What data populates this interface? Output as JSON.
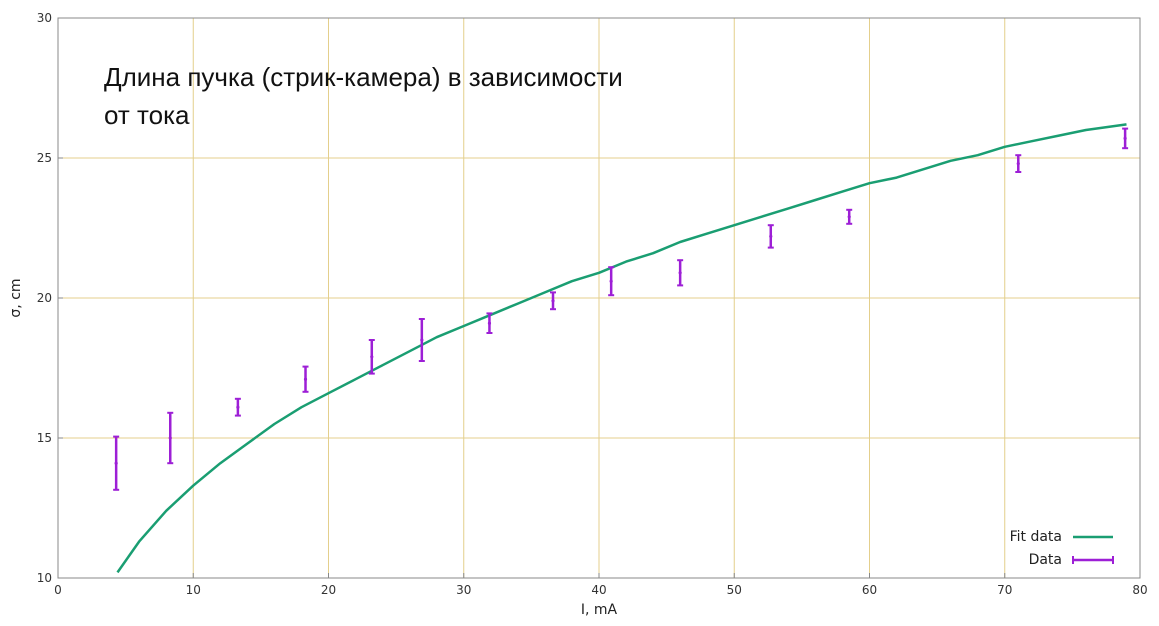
{
  "chart_data": {
    "type": "scatter",
    "title_lines": [
      "Длина пучка (стрик-камера) в зависимости",
      "от тока"
    ],
    "xlabel": "I, mA",
    "ylabel": "σ, cm",
    "xlim": [
      0,
      80
    ],
    "ylim": [
      10,
      30
    ],
    "x_ticks": [
      0,
      10,
      20,
      30,
      40,
      50,
      60,
      70,
      80
    ],
    "y_ticks": [
      10,
      15,
      20,
      25,
      30
    ],
    "grid": true,
    "legend_position": "bottom-right",
    "colors": {
      "fit": "#1a9e72",
      "data": "#9d1fd6",
      "grid": "#e4cf8c",
      "axis": "#888888"
    },
    "series": [
      {
        "name": "Fit data",
        "kind": "line",
        "x": [
          4.4,
          6,
          8,
          10,
          12,
          14,
          16,
          18,
          20,
          22,
          24,
          26,
          28,
          30,
          32,
          34,
          36,
          38,
          40,
          42,
          44,
          46,
          48,
          50,
          52,
          54,
          56,
          58,
          60,
          62,
          64,
          66,
          68,
          70,
          72,
          74,
          76,
          79
        ],
        "y": [
          10.2,
          11.3,
          12.4,
          13.3,
          14.1,
          14.8,
          15.5,
          16.1,
          16.6,
          17.1,
          17.6,
          18.1,
          18.6,
          19.0,
          19.4,
          19.8,
          20.2,
          20.6,
          20.9,
          21.3,
          21.6,
          22.0,
          22.3,
          22.6,
          22.9,
          23.2,
          23.5,
          23.8,
          24.1,
          24.3,
          24.6,
          24.9,
          25.1,
          25.4,
          25.6,
          25.8,
          26.0,
          26.2
        ]
      },
      {
        "name": "Data",
        "kind": "errorbar",
        "points": [
          {
            "x": 4.3,
            "y": 14.1,
            "err": 0.95
          },
          {
            "x": 8.3,
            "y": 15.0,
            "err": 0.9
          },
          {
            "x": 13.3,
            "y": 16.1,
            "err": 0.3
          },
          {
            "x": 18.3,
            "y": 17.1,
            "err": 0.45
          },
          {
            "x": 23.2,
            "y": 17.9,
            "err": 0.6
          },
          {
            "x": 26.9,
            "y": 18.5,
            "err": 0.75
          },
          {
            "x": 31.9,
            "y": 19.1,
            "err": 0.35
          },
          {
            "x": 36.6,
            "y": 19.9,
            "err": 0.3
          },
          {
            "x": 40.9,
            "y": 20.6,
            "err": 0.5
          },
          {
            "x": 46.0,
            "y": 20.9,
            "err": 0.45
          },
          {
            "x": 52.7,
            "y": 22.2,
            "err": 0.4
          },
          {
            "x": 58.5,
            "y": 22.9,
            "err": 0.25
          },
          {
            "x": 71.0,
            "y": 24.8,
            "err": 0.3
          },
          {
            "x": 78.9,
            "y": 25.7,
            "err": 0.35
          }
        ]
      }
    ]
  }
}
